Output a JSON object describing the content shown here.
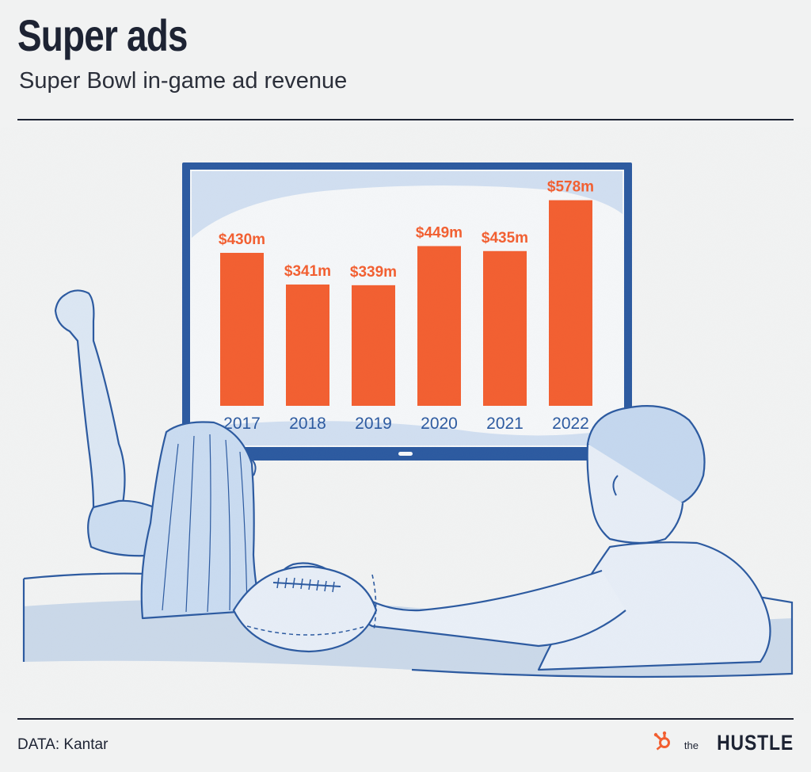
{
  "header": {
    "title": "Super ads",
    "subtitle": "Super Bowl in-game ad revenue"
  },
  "footer": {
    "source": "DATA: Kantar",
    "brand_prefix": "the",
    "brand_name": "HUSTLE",
    "brand_icon": "hubspot-sprocket-icon"
  },
  "colors": {
    "bar": "#f25f31",
    "tv_frame": "#2c5aa0",
    "illustration": "#2c5aa0",
    "background": "#f1f2f2"
  },
  "chart_data": {
    "type": "bar",
    "title": "Super ads",
    "subtitle": "Super Bowl in-game ad revenue",
    "categories": [
      "2017",
      "2018",
      "2019",
      "2020",
      "2021",
      "2022"
    ],
    "values": [
      430,
      341,
      339,
      449,
      435,
      578
    ],
    "value_labels": [
      "$430m",
      "$341m",
      "$339m",
      "$449m",
      "$435m",
      "$578m"
    ],
    "unit": "$ millions",
    "xlabel": "",
    "ylabel": "",
    "ylim": [
      0,
      600
    ],
    "grid": false,
    "legend": "none"
  }
}
